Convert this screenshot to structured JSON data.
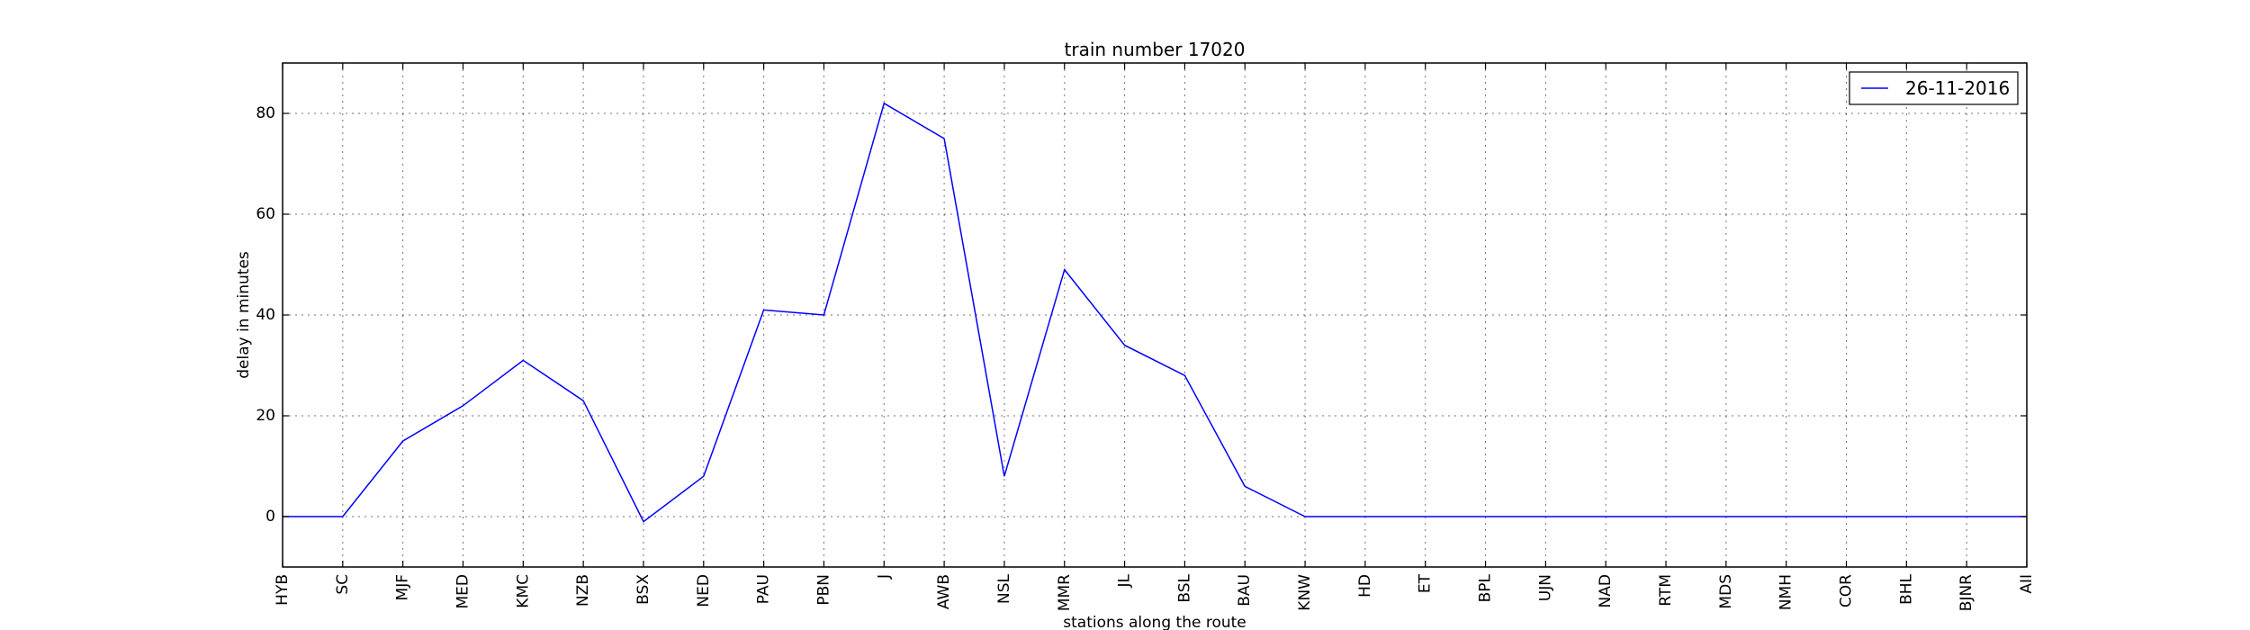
{
  "chart_data": {
    "type": "line",
    "title": "train number 17020",
    "xlabel": "stations along the route",
    "ylabel": "delay in minutes",
    "categories": [
      "HYB",
      "SC",
      "MJF",
      "MED",
      "KMC",
      "NZB",
      "BSX",
      "NED",
      "PAU",
      "PBN",
      "J",
      "AWB",
      "NSL",
      "MMR",
      "JL",
      "BSL",
      "BAU",
      "KNW",
      "HD",
      "ET",
      "BPL",
      "UJN",
      "NAD",
      "RTM",
      "MDS",
      "NMH",
      "COR",
      "BHL",
      "BJNR",
      "AII"
    ],
    "yticks": [
      0,
      20,
      40,
      60,
      80
    ],
    "ylim": [
      -10,
      90
    ],
    "grid": true,
    "legend_position": "top-right",
    "series": [
      {
        "name": "26-11-2016",
        "color": "#0000ff",
        "values": [
          0,
          0,
          15,
          22,
          31,
          23,
          -1,
          8,
          41,
          40,
          82,
          75,
          8,
          49,
          34,
          28,
          6,
          0,
          0,
          0,
          0,
          0,
          0,
          0,
          0,
          0,
          0,
          0,
          0,
          0
        ]
      }
    ]
  }
}
